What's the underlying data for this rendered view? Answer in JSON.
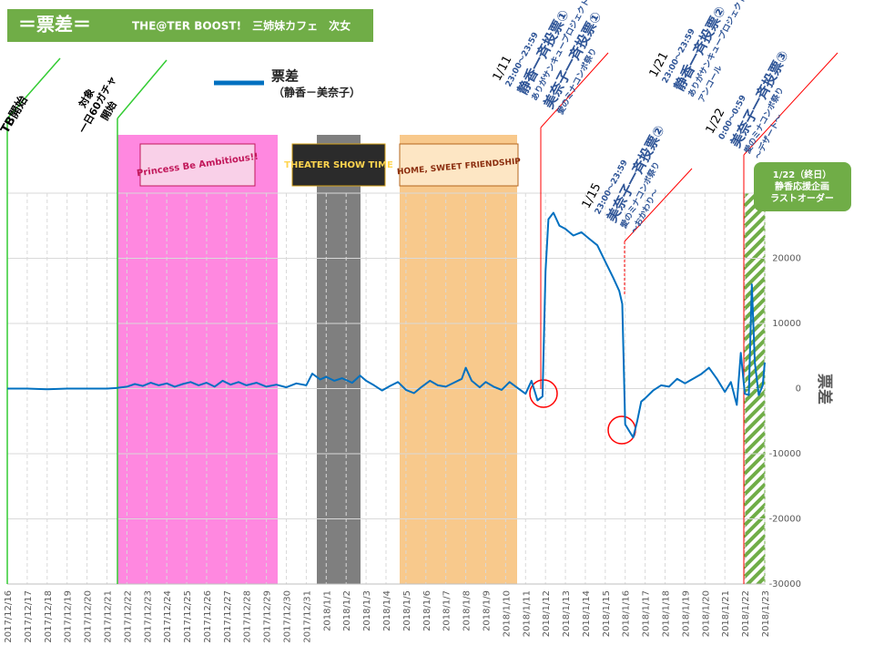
{
  "chart_data": {
    "type": "line",
    "title": "＝票差＝",
    "subtitle": "THE@TER BOOST!　三姉妹カフェ　次女",
    "ylabel": "票差",
    "legend_note": "（静香－美奈子）",
    "xlim": [
      0,
      38
    ],
    "xticks": [
      {
        "value": 0,
        "label": "2017/12/16"
      },
      {
        "value": 1,
        "label": "2017/12/17"
      },
      {
        "value": 2,
        "label": "2017/12/18"
      },
      {
        "value": 3,
        "label": "2017/12/19"
      },
      {
        "value": 4,
        "label": "2017/12/20"
      },
      {
        "value": 5,
        "label": "2017/12/21"
      },
      {
        "value": 6,
        "label": "2017/12/22"
      },
      {
        "value": 7,
        "label": "2017/12/23"
      },
      {
        "value": 8,
        "label": "2017/12/24"
      },
      {
        "value": 9,
        "label": "2017/12/25"
      },
      {
        "value": 10,
        "label": "2017/12/26"
      },
      {
        "value": 11,
        "label": "2017/12/27"
      },
      {
        "value": 12,
        "label": "2017/12/28"
      },
      {
        "value": 13,
        "label": "2017/12/29"
      },
      {
        "value": 14,
        "label": "2017/12/30"
      },
      {
        "value": 15,
        "label": "2017/12/31"
      },
      {
        "value": 16,
        "label": "2018/1/1"
      },
      {
        "value": 17,
        "label": "2018/1/2"
      },
      {
        "value": 18,
        "label": "2018/1/3"
      },
      {
        "value": 19,
        "label": "2018/1/4"
      },
      {
        "value": 20,
        "label": "2018/1/5"
      },
      {
        "value": 21,
        "label": "2018/1/6"
      },
      {
        "value": 22,
        "label": "2018/1/7"
      },
      {
        "value": 23,
        "label": "2018/1/8"
      },
      {
        "value": 24,
        "label": "2018/1/9"
      },
      {
        "value": 25,
        "label": "2018/1/10"
      },
      {
        "value": 26,
        "label": "2018/1/11"
      },
      {
        "value": 27,
        "label": "2018/1/12"
      },
      {
        "value": 28,
        "label": "2018/1/13"
      },
      {
        "value": 29,
        "label": "2018/1/14"
      },
      {
        "value": 30,
        "label": "2018/1/15"
      },
      {
        "value": 31,
        "label": "2018/1/16"
      },
      {
        "value": 32,
        "label": "2018/1/17"
      },
      {
        "value": 33,
        "label": "2018/1/18"
      },
      {
        "value": 34,
        "label": "2018/1/19"
      },
      {
        "value": 35,
        "label": "2018/1/20"
      },
      {
        "value": 36,
        "label": "2018/1/21"
      },
      {
        "value": 37,
        "label": "2018/1/22"
      },
      {
        "value": 38,
        "label": "2018/1/23"
      }
    ],
    "ylim": [
      -30000,
      30000
    ],
    "yticks": [
      -30000,
      -20000,
      -10000,
      0,
      10000,
      20000
    ],
    "grid": true,
    "x": [
      0,
      1,
      2,
      3,
      4,
      5,
      5.5,
      6,
      6.4,
      6.8,
      7.2,
      7.6,
      8,
      8.4,
      8.8,
      9.2,
      9.6,
      10,
      10.4,
      10.8,
      11.2,
      11.6,
      12,
      12.5,
      13,
      13.5,
      14,
      14.5,
      15,
      15.3,
      15.7,
      16,
      16.4,
      16.8,
      17.3,
      17.7,
      18,
      18.4,
      18.8,
      19.2,
      19.6,
      20,
      20.4,
      20.8,
      21.2,
      21.6,
      22,
      22.4,
      22.8,
      23,
      23.3,
      23.7,
      24,
      24.4,
      24.8,
      25.2,
      25.6,
      26,
      26.3,
      26.6,
      26.85,
      27,
      27.15,
      27.4,
      27.7,
      28,
      28.4,
      28.8,
      29.2,
      29.6,
      30,
      30.4,
      30.7,
      30.85,
      31,
      31.2,
      31.4,
      31.6,
      31.8,
      32,
      32.4,
      32.8,
      33.2,
      33.6,
      34,
      34.4,
      34.8,
      35.2,
      35.6,
      36,
      36.3,
      36.6,
      36.8,
      37,
      37.2,
      37.35,
      37.5,
      37.7,
      37.9,
      38
    ],
    "series": [
      {
        "name": "票差",
        "color": "#0070c0",
        "values": [
          0,
          0,
          -100,
          0,
          0,
          0,
          100,
          300,
          700,
          400,
          900,
          500,
          800,
          300,
          700,
          1000,
          500,
          900,
          300,
          1200,
          600,
          1000,
          500,
          900,
          300,
          600,
          200,
          800,
          500,
          2300,
          1400,
          1800,
          1200,
          1600,
          900,
          2000,
          1200,
          500,
          -300,
          400,
          1000,
          -200,
          -700,
          300,
          1200,
          500,
          300,
          900,
          1500,
          3200,
          1200,
          200,
          1000,
          300,
          -200,
          1000,
          100,
          -800,
          1200,
          -1800,
          -1200,
          18000,
          26000,
          27000,
          25000,
          24500,
          23500,
          24000,
          23000,
          22000,
          19500,
          17000,
          15000,
          13000,
          -5500,
          -6500,
          -7500,
          -5000,
          -2000,
          -1500,
          -300,
          500,
          300,
          1500,
          800,
          1500,
          2200,
          3200,
          1500,
          -500,
          1000,
          -2500,
          5500,
          -800,
          -1000,
          16000,
          4000,
          -1000,
          500,
          4000
        ]
      }
    ],
    "events": [
      "Princess Be Ambitious!!",
      "THEATER SHOW TIME",
      "HOME, SWEET FRIENDSHIP"
    ],
    "markers": [
      {
        "lines": [
          "TB開始"
        ]
      },
      {
        "lines": [
          "対象",
          "一日60ガチャ",
          "開始"
        ]
      }
    ],
    "annotations": [
      {
        "lines": [
          "1/11",
          "23:00～23:59",
          "静香一斉投票①",
          "ありがサンキュープロジェクト",
          "美奈子一斉投票①",
          "愛のミナコンボ祭り"
        ]
      },
      {
        "lines": [
          "1/15",
          "23:00～23:59",
          "美奈子一斉投票②",
          "愛のミナコンボ祭り",
          "～おかわり～"
        ]
      },
      {
        "lines": [
          "1/21",
          "23:00～23:59",
          "静香一斉投票②",
          "ありがサンキュープロジェクト",
          "アンコール"
        ]
      },
      {
        "lines": [
          "1/22",
          "0:00～0:59",
          "美奈子一斉投票③",
          "愛のミナコンボ祭り",
          "～デザート～"
        ]
      }
    ],
    "last_order": [
      "1/22（終日）",
      "静香応援企画",
      "ラストオーダー"
    ]
  }
}
